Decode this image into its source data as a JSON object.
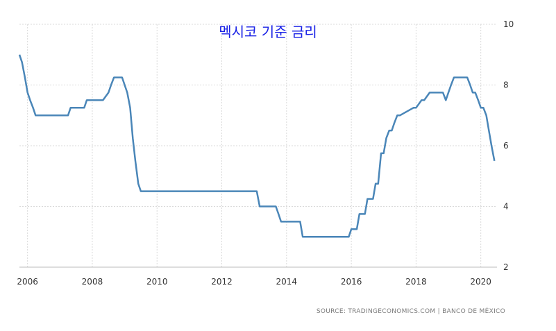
{
  "chart_data": {
    "type": "line",
    "title": "멕시코 기준 금리",
    "source": "SOURCE: TRADINGECONOMICS.COM | BANCO DE MÉXICO",
    "xlim": [
      2005.75,
      2020.5
    ],
    "ylim": [
      2,
      10
    ],
    "x_ticks": [
      2006,
      2008,
      2010,
      2012,
      2014,
      2016,
      2018,
      2020
    ],
    "x_tick_labels": [
      "2006",
      "2008",
      "2010",
      "2012",
      "2014",
      "2016",
      "2018",
      "2020"
    ],
    "y_ticks": [
      2,
      4,
      6,
      8,
      10
    ],
    "y_tick_labels": [
      "2",
      "4",
      "6",
      "8",
      "10"
    ],
    "grid": true,
    "series": [
      {
        "color": "#4a86b8",
        "x": [
          2005.75,
          2005.83,
          2005.92,
          2006.0,
          2006.08,
          2006.17,
          2006.25,
          2006.33,
          2007.25,
          2007.33,
          2007.75,
          2007.83,
          2008.33,
          2008.5,
          2008.58,
          2008.67,
          2008.92,
          2009.0,
          2009.08,
          2009.17,
          2009.25,
          2009.33,
          2009.42,
          2009.5,
          2009.58,
          2013.08,
          2013.17,
          2013.67,
          2013.75,
          2013.83,
          2014.42,
          2014.5,
          2015.92,
          2016.0,
          2016.17,
          2016.25,
          2016.42,
          2016.5,
          2016.67,
          2016.75,
          2016.83,
          2016.92,
          2017.0,
          2017.08,
          2017.17,
          2017.25,
          2017.33,
          2017.42,
          2017.5,
          2017.92,
          2018.0,
          2018.17,
          2018.25,
          2018.42,
          2018.5,
          2018.83,
          2018.92,
          2019.0,
          2019.08,
          2019.17,
          2019.25,
          2019.58,
          2019.67,
          2019.75,
          2019.83,
          2019.92,
          2020.0,
          2020.08,
          2020.17,
          2020.25,
          2020.33,
          2020.42
        ],
        "y": [
          9.0,
          8.75,
          8.25,
          7.75,
          7.5,
          7.25,
          7.0,
          7.0,
          7.0,
          7.25,
          7.25,
          7.5,
          7.5,
          7.75,
          8.0,
          8.25,
          8.25,
          8.0,
          7.75,
          7.25,
          6.25,
          5.5,
          4.75,
          4.5,
          4.5,
          4.5,
          4.0,
          4.0,
          3.75,
          3.5,
          3.5,
          3.0,
          3.0,
          3.25,
          3.25,
          3.75,
          3.75,
          4.25,
          4.25,
          4.75,
          4.75,
          5.75,
          5.75,
          6.25,
          6.5,
          6.5,
          6.75,
          7.0,
          7.0,
          7.25,
          7.25,
          7.5,
          7.5,
          7.75,
          7.75,
          7.75,
          7.5,
          7.75,
          8.0,
          8.25,
          8.25,
          8.25,
          8.0,
          7.75,
          7.75,
          7.5,
          7.25,
          7.25,
          7.0,
          6.5,
          6.0,
          5.5
        ]
      }
    ]
  }
}
